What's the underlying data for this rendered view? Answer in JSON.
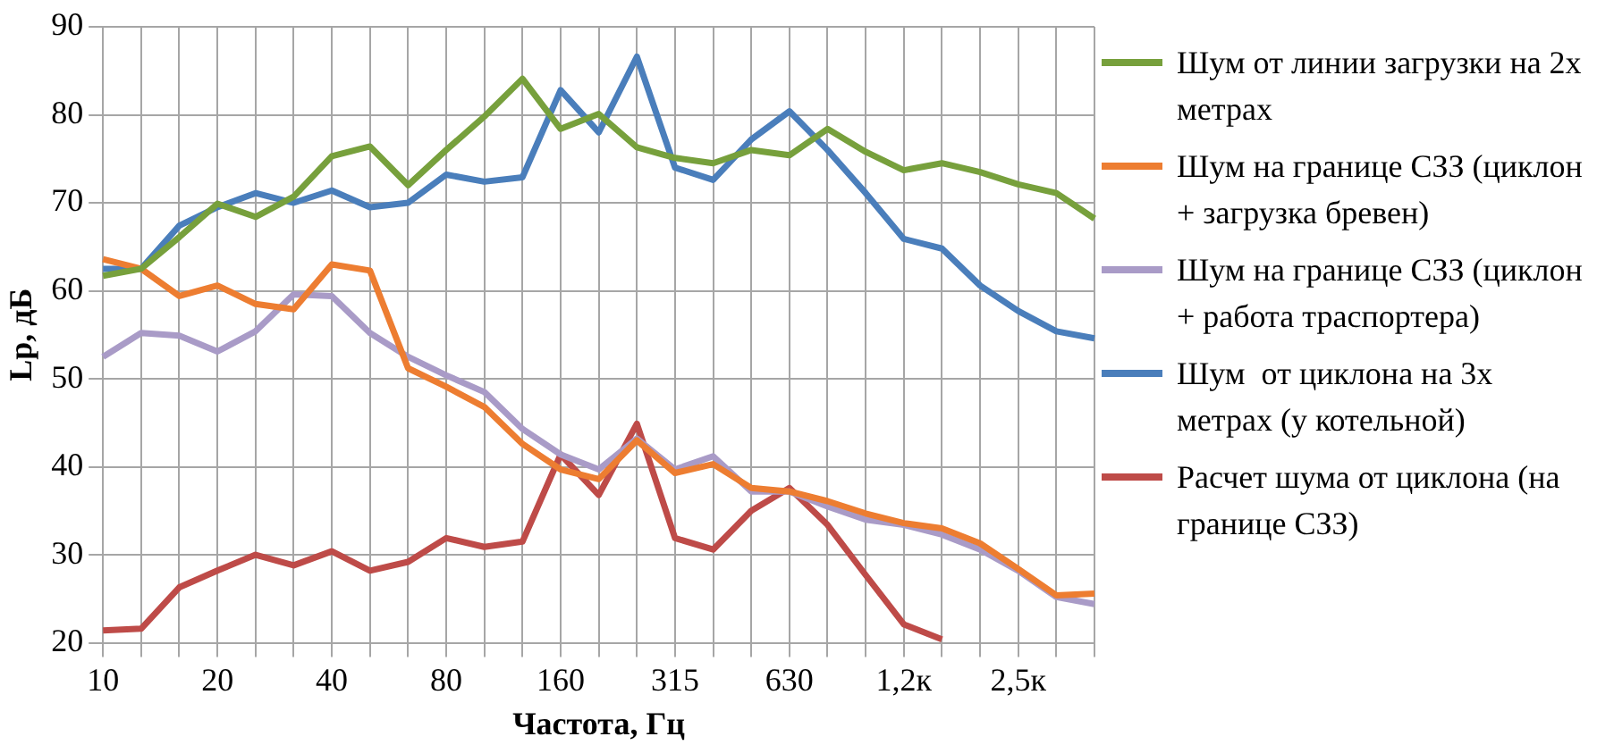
{
  "chart_data": {
    "type": "line",
    "xlabel": "Частота, Гц",
    "ylabel": "Lp, дБ",
    "categories": [
      "10",
      null,
      null,
      "20",
      null,
      null,
      "40",
      null,
      null,
      "80",
      null,
      null,
      "160",
      null,
      null,
      "315",
      null,
      null,
      "630",
      null,
      null,
      "1,2к",
      null,
      null,
      "2,5к",
      null,
      null
    ],
    "ylim": [
      20,
      90
    ],
    "yticks": [
      20,
      30,
      40,
      50,
      60,
      70,
      80,
      90
    ],
    "grid": true,
    "legend": "right",
    "marker": "none",
    "line_style": "solid",
    "series": [
      {
        "name": "Шум от линии загрузки на 2х метрах",
        "color": "#77a03c",
        "values": [
          61.7,
          62.5,
          66.1,
          69.9,
          68.4,
          70.7,
          75.3,
          76.4,
          72.0,
          76.0,
          79.8,
          84.1,
          78.4,
          80.1,
          76.3,
          75.1,
          74.5,
          76.0,
          75.4,
          78.4,
          75.8,
          73.7,
          74.5,
          73.5,
          72.1,
          71.1,
          68.2
        ]
      },
      {
        "name": "Шум на границе СЗЗ (циклон + загрузка бревен)",
        "color": "#ed7d31",
        "values": [
          63.6,
          62.5,
          59.4,
          60.6,
          58.5,
          57.9,
          63.0,
          62.3,
          51.2,
          49.1,
          46.8,
          42.6,
          39.7,
          38.6,
          43.0,
          39.3,
          40.3,
          37.6,
          37.2,
          36.1,
          34.7,
          33.6,
          33.0,
          31.3,
          28.4,
          25.4,
          25.6
        ]
      },
      {
        "name": "Шум на границе СЗЗ (циклон + работа траспортера)",
        "color": "#a99bc7",
        "values": [
          52.5,
          55.2,
          54.9,
          53.1,
          55.4,
          59.6,
          59.4,
          55.2,
          52.5,
          50.4,
          48.5,
          44.3,
          41.4,
          39.7,
          43.2,
          39.7,
          41.2,
          37.2,
          37.2,
          35.5,
          34.0,
          33.4,
          32.3,
          30.6,
          28.2,
          25.2,
          24.4
        ]
      },
      {
        "name": "Шум  от циклона на 3х метрах (у котельной)",
        "color": "#4a7ebb",
        "values": [
          62.5,
          62.5,
          67.4,
          69.5,
          71.1,
          70.0,
          71.4,
          69.5,
          70.0,
          73.2,
          72.4,
          72.9,
          82.8,
          78.0,
          86.6,
          74.0,
          72.6,
          77.2,
          80.4,
          76.0,
          71.1,
          65.9,
          64.8,
          60.6,
          57.7,
          55.4,
          54.6
        ]
      },
      {
        "name": "Расчет шума от циклона (на границе СЗЗ)",
        "color": "#be4b48",
        "values": [
          21.4,
          21.6,
          26.3,
          28.2,
          30.0,
          28.8,
          30.4,
          28.2,
          29.2,
          31.9,
          30.9,
          31.5,
          41.4,
          36.8,
          44.9,
          31.9,
          30.6,
          35.0,
          37.6,
          33.4,
          27.7,
          22.1,
          20.4,
          null,
          null,
          null,
          null
        ]
      }
    ]
  }
}
